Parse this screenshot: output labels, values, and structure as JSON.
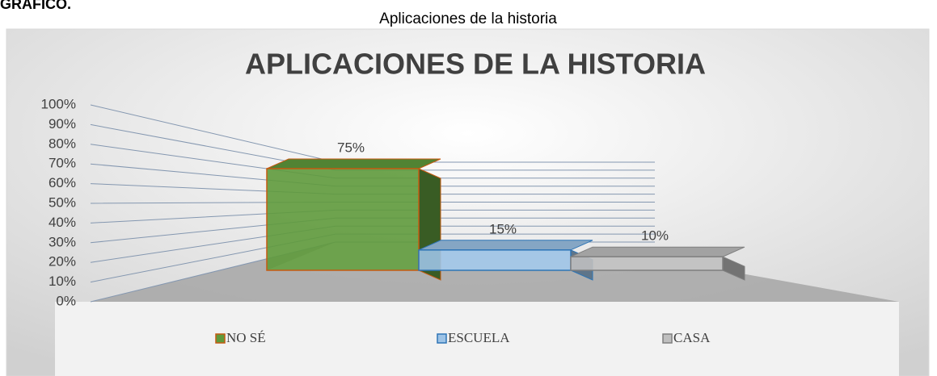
{
  "heading": "GRAFICO.",
  "caption": "Aplicaciones de la historia",
  "chart_data": {
    "type": "bar3d",
    "title": "APLICACIONES DE LA HISTORIA",
    "categories": [
      "NO SÉ",
      "ESCUELA",
      "CASA"
    ],
    "values": [
      75,
      15,
      10
    ],
    "value_labels": [
      "75%",
      "15%",
      "10%"
    ],
    "colors": [
      "#5f9a3c",
      "#9dc3e6",
      "#bfbfbf"
    ],
    "ylim": [
      0,
      100
    ],
    "yticks": [
      {
        "value": 0,
        "label": "0%"
      },
      {
        "value": 10,
        "label": "10%"
      },
      {
        "value": 20,
        "label": "20%"
      },
      {
        "value": 30,
        "label": "30%"
      },
      {
        "value": 40,
        "label": "40%"
      },
      {
        "value": 50,
        "label": "50%"
      },
      {
        "value": 60,
        "label": "60%"
      },
      {
        "value": 70,
        "label": "70%"
      },
      {
        "value": 80,
        "label": "80%"
      },
      {
        "value": 90,
        "label": "90%"
      },
      {
        "value": 100,
        "label": "100%"
      }
    ],
    "grid": true,
    "legend": "bottom"
  }
}
